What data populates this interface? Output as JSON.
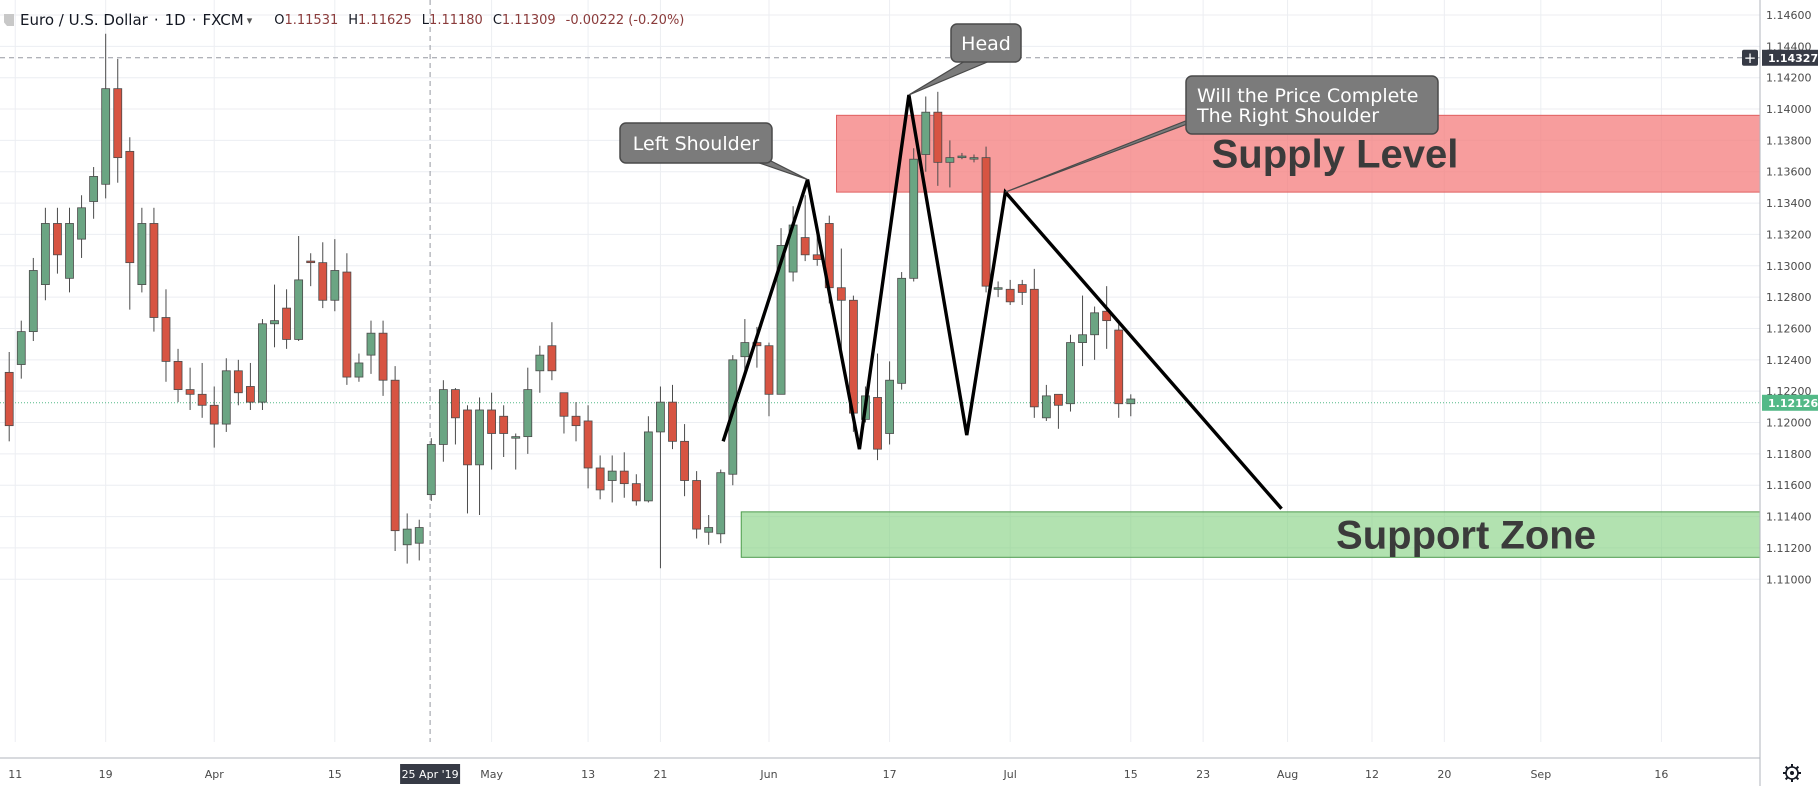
{
  "header": {
    "symbol": "Euro / U.S. Dollar",
    "interval": "1D",
    "exchange": "FXCM",
    "open": "1.11531",
    "high": "1.11625",
    "low": "1.11180",
    "close": "1.11309",
    "change": "-0.00222 (-0.20%)",
    "dropdown_icon": "chevron-down-icon"
  },
  "colors": {
    "up": "#6ba583",
    "down": "#d75442",
    "supply": "#f47c7c",
    "support": "#7fcf7c",
    "last_price_badge": "#53b987",
    "crosshair_badge": "#363a45"
  },
  "chart_data": {
    "type": "candlestick",
    "y_axis": {
      "min": 1.1,
      "max": 1.146,
      "ticks": [
        "1.14600",
        "1.14400",
        "1.14200",
        "1.14000",
        "1.13800",
        "1.13600",
        "1.13400",
        "1.13200",
        "1.13000",
        "1.12800",
        "1.12600",
        "1.12400",
        "1.12200",
        "1.12000",
        "1.11800",
        "1.11600",
        "1.11400",
        "1.11200",
        "1.11000"
      ]
    },
    "x_axis": {
      "ticks": [
        {
          "label": "11",
          "idx": 0.5
        },
        {
          "label": "19",
          "idx": 8
        },
        {
          "label": "Apr",
          "idx": 17
        },
        {
          "label": "15",
          "idx": 27
        },
        {
          "label": "May",
          "idx": 40
        },
        {
          "label": "13",
          "idx": 48
        },
        {
          "label": "21",
          "idx": 54
        },
        {
          "label": "Jun",
          "idx": 63
        },
        {
          "label": "17",
          "idx": 73
        },
        {
          "label": "Jul",
          "idx": 83
        },
        {
          "label": "15",
          "idx": 93
        },
        {
          "label": "23",
          "idx": 99
        },
        {
          "label": "Aug",
          "idx": 106
        },
        {
          "label": "12",
          "idx": 113
        },
        {
          "label": "20",
          "idx": 119
        },
        {
          "label": "Sep",
          "idx": 127
        },
        {
          "label": "16",
          "idx": 137
        }
      ]
    },
    "last_price": "1.12126",
    "crosshair_price": "1.14327",
    "crosshair_date": "25 Apr '19",
    "crosshair_value": 1.14327,
    "crosshair_idx": 34.9,
    "candles": [
      [
        1.1232,
        1.1198,
        1.1245,
        1.1188
      ],
      [
        1.1237,
        1.1258,
        1.1265,
        1.1228
      ],
      [
        1.1258,
        1.1297,
        1.1305,
        1.1252
      ],
      [
        1.1288,
        1.1327,
        1.1337,
        1.1278
      ],
      [
        1.1327,
        1.1307,
        1.1337,
        1.1295
      ],
      [
        1.1292,
        1.1327,
        1.1337,
        1.1283
      ],
      [
        1.1317,
        1.1337,
        1.1345,
        1.1305
      ],
      [
        1.1341,
        1.1357,
        1.1363,
        1.133
      ],
      [
        1.1352,
        1.1413,
        1.1448,
        1.1343
      ],
      [
        1.1413,
        1.1369,
        1.1432,
        1.1353
      ],
      [
        1.1373,
        1.1302,
        1.1382,
        1.1272
      ],
      [
        1.1288,
        1.1327,
        1.1337,
        1.1283
      ],
      [
        1.1327,
        1.1267,
        1.1337,
        1.1258
      ],
      [
        1.1267,
        1.1239,
        1.1285,
        1.1226
      ],
      [
        1.1239,
        1.1221,
        1.1247,
        1.1213
      ],
      [
        1.1221,
        1.1218,
        1.1235,
        1.1208
      ],
      [
        1.1218,
        1.1211,
        1.1238,
        1.1203
      ],
      [
        1.1211,
        1.1199,
        1.1223,
        1.1184
      ],
      [
        1.1199,
        1.1233,
        1.1241,
        1.1194
      ],
      [
        1.1233,
        1.1219,
        1.124,
        1.1211
      ],
      [
        1.1223,
        1.1213,
        1.1238,
        1.1208
      ],
      [
        1.1213,
        1.1263,
        1.1266,
        1.1208
      ],
      [
        1.1263,
        1.1265,
        1.1288,
        1.1248
      ],
      [
        1.1273,
        1.1253,
        1.1285,
        1.1247
      ],
      [
        1.1253,
        1.1291,
        1.1319,
        1.1252
      ],
      [
        1.1303,
        1.1302,
        1.1308,
        1.1287
      ],
      [
        1.1302,
        1.1278,
        1.1315,
        1.1273
      ],
      [
        1.1278,
        1.1297,
        1.1317,
        1.1271
      ],
      [
        1.1296,
        1.1229,
        1.1308,
        1.1224
      ],
      [
        1.1229,
        1.1238,
        1.1244,
        1.1226
      ],
      [
        1.1243,
        1.1257,
        1.1265,
        1.1231
      ],
      [
        1.1257,
        1.1227,
        1.1265,
        1.1217
      ],
      [
        1.1227,
        1.1131,
        1.1236,
        1.1118
      ],
      [
        1.1122,
        1.1132,
        1.1142,
        1.111
      ],
      [
        1.1123,
        1.1133,
        1.1138,
        1.1112
      ],
      [
        1.1154,
        1.1186,
        1.119,
        1.115
      ],
      [
        1.1186,
        1.1221,
        1.1227,
        1.1175
      ],
      [
        1.1221,
        1.1203,
        1.1222,
        1.1186
      ],
      [
        1.1208,
        1.1173,
        1.1211,
        1.1142
      ],
      [
        1.1173,
        1.1208,
        1.1216,
        1.1141
      ],
      [
        1.1208,
        1.1193,
        1.1219,
        1.117
      ],
      [
        1.1204,
        1.1193,
        1.1211,
        1.1178
      ],
      [
        1.119,
        1.1191,
        1.1193,
        1.117
      ],
      [
        1.1191,
        1.1221,
        1.1235,
        1.118
      ],
      [
        1.1233,
        1.1243,
        1.1249,
        1.1219
      ],
      [
        1.1249,
        1.1233,
        1.1264,
        1.1227
      ],
      [
        1.1219,
        1.1204,
        1.1219,
        1.1193
      ],
      [
        1.1204,
        1.1198,
        1.1213,
        1.1188
      ],
      [
        1.1201,
        1.1171,
        1.1211,
        1.1158
      ],
      [
        1.1171,
        1.1157,
        1.1179,
        1.1151
      ],
      [
        1.1163,
        1.1169,
        1.1179,
        1.1149
      ],
      [
        1.1169,
        1.1161,
        1.1181,
        1.1152
      ],
      [
        1.1161,
        1.115,
        1.1167,
        1.1147
      ],
      [
        1.115,
        1.1194,
        1.1204,
        1.1149
      ],
      [
        1.1194,
        1.1213,
        1.1223,
        1.1107
      ],
      [
        1.1213,
        1.1188,
        1.1224,
        1.1183
      ],
      [
        1.1188,
        1.1163,
        1.1199,
        1.1153
      ],
      [
        1.1163,
        1.1132,
        1.1169,
        1.1126
      ],
      [
        1.113,
        1.1133,
        1.1141,
        1.1122
      ],
      [
        1.1129,
        1.1168,
        1.117,
        1.1123
      ],
      [
        1.1167,
        1.124,
        1.1243,
        1.116
      ],
      [
        1.1242,
        1.1251,
        1.1266,
        1.1229
      ],
      [
        1.1251,
        1.1249,
        1.1261,
        1.1235
      ],
      [
        1.1249,
        1.1218,
        1.1251,
        1.1204
      ],
      [
        1.1218,
        1.1313,
        1.1324,
        1.1218
      ],
      [
        1.1296,
        1.1326,
        1.1338,
        1.129
      ],
      [
        1.1318,
        1.1307,
        1.1345,
        1.1303
      ],
      [
        1.1307,
        1.1304,
        1.1325,
        1.13
      ],
      [
        1.1327,
        1.1286,
        1.1332,
        1.1276
      ],
      [
        1.1286,
        1.1278,
        1.1311,
        1.1247
      ],
      [
        1.1278,
        1.1206,
        1.1281,
        1.1194
      ],
      [
        1.1202,
        1.1217,
        1.1223,
        1.12
      ],
      [
        1.1216,
        1.1183,
        1.1244,
        1.1176
      ],
      [
        1.1193,
        1.1227,
        1.1239,
        1.1186
      ],
      [
        1.1225,
        1.1292,
        1.1296,
        1.1221
      ],
      [
        1.1292,
        1.1368,
        1.1375,
        1.129
      ],
      [
        1.1371,
        1.1398,
        1.1408,
        1.136
      ],
      [
        1.1398,
        1.1366,
        1.1411,
        1.1351
      ],
      [
        1.1366,
        1.1369,
        1.138,
        1.135
      ],
      [
        1.1369,
        1.137,
        1.1372,
        1.1368
      ],
      [
        1.1369,
        1.1369,
        1.1371,
        1.1366
      ],
      [
        1.1369,
        1.1287,
        1.1376,
        1.1283
      ],
      [
        1.1285,
        1.1286,
        1.129,
        1.128
      ],
      [
        1.1285,
        1.1277,
        1.1291,
        1.1275
      ],
      [
        1.1288,
        1.1283,
        1.1291,
        1.1275
      ],
      [
        1.1285,
        1.121,
        1.1298,
        1.1203
      ],
      [
        1.1203,
        1.1217,
        1.1224,
        1.1201
      ],
      [
        1.1218,
        1.1211,
        1.1217,
        1.1196
      ],
      [
        1.1212,
        1.1251,
        1.1256,
        1.1207
      ],
      [
        1.1251,
        1.1256,
        1.1281,
        1.1236
      ],
      [
        1.1256,
        1.127,
        1.1274,
        1.124
      ],
      [
        1.1271,
        1.1265,
        1.1287,
        1.1247
      ],
      [
        1.1259,
        1.1212,
        1.1263,
        1.1203
      ],
      [
        1.1212,
        1.1215,
        1.1218,
        1.1204
      ]
    ],
    "zones": [
      {
        "name": "supply",
        "label": "Supply Level",
        "from": 1.1347,
        "to": 1.1396
      },
      {
        "name": "support",
        "label": "Support Zone",
        "from": 1.1114,
        "to": 1.1143
      }
    ],
    "pattern_line": [
      [
        59.2,
        1.1188
      ],
      [
        66.2,
        1.1355
      ],
      [
        70.5,
        1.1183
      ],
      [
        74.6,
        1.1409
      ],
      [
        79.4,
        1.1192
      ],
      [
        82.6,
        1.1347
      ],
      [
        105.5,
        1.1145
      ]
    ],
    "callouts": [
      {
        "id": "left-shoulder",
        "lines": [
          "Left Shoulder"
        ]
      },
      {
        "id": "head",
        "lines": [
          "Head"
        ]
      },
      {
        "id": "right-shoulder",
        "lines": [
          "Will the Price Complete",
          "The Right Shoulder"
        ]
      }
    ]
  }
}
